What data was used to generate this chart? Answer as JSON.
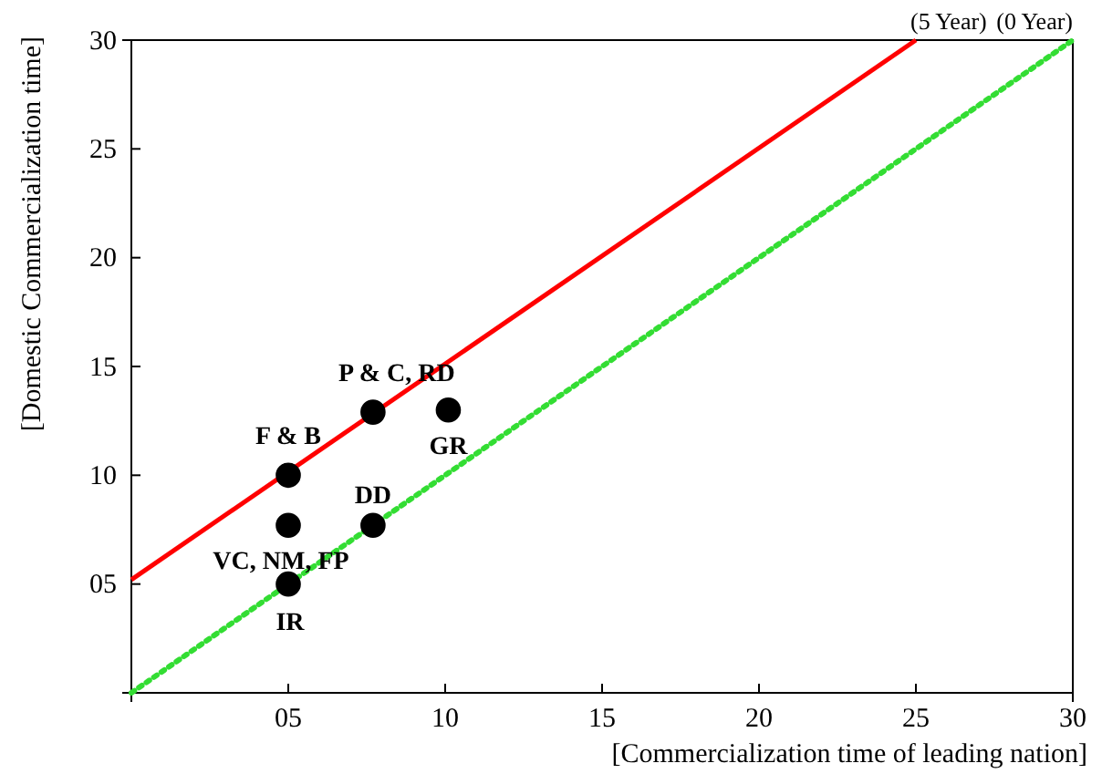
{
  "chart_data": {
    "type": "scatter",
    "xlabel": "[Commercialization time of leading nation]",
    "ylabel": "[Domestic Commercialization time]",
    "xlim": [
      0,
      30
    ],
    "ylim": [
      0,
      30
    ],
    "xticks": [
      {
        "value": 5,
        "label": "05"
      },
      10,
      15,
      20,
      25,
      30
    ],
    "yticks": [
      {
        "value": 5,
        "label": "05"
      },
      10,
      15,
      20,
      25,
      30
    ],
    "grid": false,
    "series": [
      {
        "type": "line",
        "color": "#ff0000",
        "line_style": "solid",
        "x": [
          0,
          25
        ],
        "values": [
          5.2,
          30
        ]
      },
      {
        "type": "line",
        "color": "#33dd33",
        "line_style": "dotted",
        "x": [
          0,
          30
        ],
        "values": [
          0,
          30
        ]
      },
      {
        "marker": "circle",
        "color": "#000000",
        "x": [
          5,
          5,
          5,
          7.7,
          7.7,
          10.1
        ],
        "values": [
          10,
          7.7,
          5,
          7.7,
          12.9,
          13
        ]
      }
    ],
    "annotations": [
      {
        "text": "(5 Year)",
        "x": 25,
        "y": 30
      },
      {
        "text": "(0 Year)",
        "x": 30,
        "y": 30
      },
      {
        "text": "F & B",
        "x": 5,
        "y": 10
      },
      {
        "text": "P & C, RD",
        "x": 7.7,
        "y": 12.9
      },
      {
        "text": "GR",
        "x": 10.1,
        "y": 13
      },
      {
        "text": "DD",
        "x": 7.7,
        "y": 7.7
      },
      {
        "text": "VC, NM, FP",
        "x": 5,
        "y": 7.7
      },
      {
        "text": "IR",
        "x": 5,
        "y": 5
      }
    ]
  }
}
